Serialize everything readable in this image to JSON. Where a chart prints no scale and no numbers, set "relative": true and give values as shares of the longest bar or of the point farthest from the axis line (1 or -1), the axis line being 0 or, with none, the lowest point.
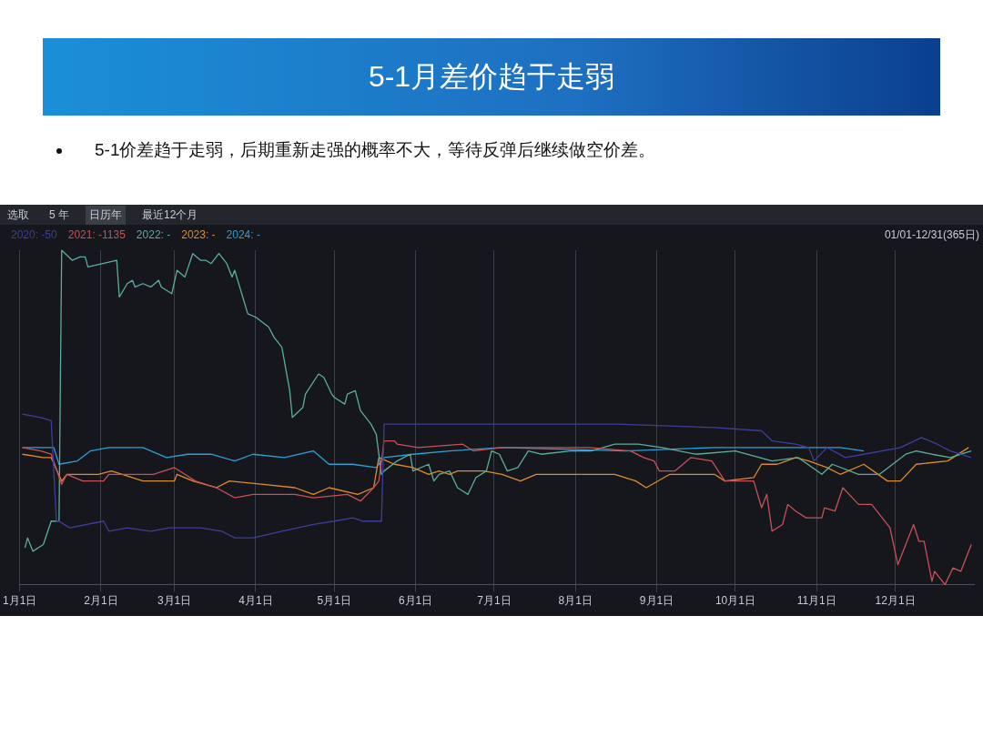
{
  "chart_data": {
    "type": "line",
    "title": "5-1月差价趋于走弱",
    "subtitle": "5-1价差趋于走弱，后期重新走强的概率不大，等待反弹后继续做空价差。",
    "annotations": [
      "选取",
      "5 年",
      "日历年",
      "最近12个月",
      "01/01-12/31(365日)"
    ],
    "relative": true,
    "legend": "top left",
    "grid": "x",
    "marker": "none",
    "line_style": "solid",
    "xlim": [
      "--01-01",
      "--12-31"
    ],
    "xticks": [
      {
        "value": "--01-01",
        "label": "1月1日"
      },
      {
        "value": "--02-01",
        "label": "2月1日"
      },
      {
        "value": "--03-01",
        "label": "3月1日"
      },
      {
        "value": "--04-01",
        "label": "4月1日"
      },
      {
        "value": "--05-01",
        "label": "5月1日"
      },
      {
        "value": "--06-01",
        "label": "6月1日"
      },
      {
        "value": "--07-01",
        "label": "7月1日"
      },
      {
        "value": "--08-01",
        "label": "8月1日"
      },
      {
        "value": "--09-01",
        "label": "9月1日"
      },
      {
        "value": "--10-01",
        "label": "10月1日"
      },
      {
        "value": "--11-01",
        "label": "11月1日"
      },
      {
        "value": "--12-01",
        "label": "12月1日"
      }
    ],
    "series": [
      {
        "name": "2020: -50",
        "color": "#3d3f9a",
        "x": [
          "--01-02",
          "--01-09",
          "--01-13",
          "--01-15",
          "--01-16",
          "--01-20",
          "--02-02",
          "--02-04",
          "--02-11",
          "--02-20",
          "--02-27",
          "--03-11",
          "--03-19",
          "--03-24",
          "--03-31",
          "--04-11",
          "--04-23",
          "--05-01",
          "--05-08",
          "--05-12",
          "--05-19",
          "--05-20",
          "--07-04",
          "--08-17",
          "--09-23",
          "--10-11",
          "--10-15",
          "--10-24",
          "--10-29",
          "--10-31",
          "--11-05",
          "--11-12",
          "--11-19",
          "--12-03",
          "--12-11",
          "--12-17",
          "--12-22",
          "--12-30"
        ],
        "values": [
          0.51,
          0.5,
          0.49,
          0.19,
          0.19,
          0.17,
          0.19,
          0.16,
          0.17,
          0.16,
          0.17,
          0.17,
          0.16,
          0.14,
          0.14,
          0.16,
          0.18,
          0.19,
          0.2,
          0.19,
          0.19,
          0.48,
          0.48,
          0.48,
          0.47,
          0.46,
          0.43,
          0.42,
          0.41,
          0.37,
          0.41,
          0.38,
          0.39,
          0.41,
          0.44,
          0.42,
          0.4,
          0.38
        ]
      },
      {
        "name": "2021: -1135",
        "color": "#c9505a",
        "x": [
          "--01-02",
          "--01-09",
          "--01-13",
          "--01-17",
          "--01-19",
          "--01-25",
          "--02-02",
          "--02-04",
          "--02-12",
          "--02-21",
          "--03-01",
          "--03-05",
          "--03-09",
          "--03-17",
          "--03-24",
          "--03-31",
          "--04-08",
          "--04-16",
          "--04-23",
          "--05-06",
          "--05-11",
          "--05-16",
          "--05-18",
          "--05-20",
          "--05-24",
          "--05-25",
          "--06-02",
          "--06-19",
          "--06-23",
          "--07-04",
          "--08-06",
          "--08-22",
          "--08-27",
          "--08-31",
          "--09-02",
          "--09-08",
          "--09-14",
          "--09-22",
          "--09-27",
          "--10-03",
          "--10-08",
          "--10-11",
          "--10-13",
          "--10-15",
          "--10-19",
          "--10-21",
          "--10-24",
          "--10-28",
          "--11-03",
          "--11-04",
          "--11-08",
          "--11-11",
          "--11-17",
          "--11-22",
          "--11-29",
          "--12-02",
          "--12-08",
          "--12-10",
          "--12-12",
          "--12-15",
          "--12-16",
          "--12-20",
          "--12-23",
          "--12-26",
          "--12-28",
          "--12-30"
        ],
        "values": [
          0.41,
          0.4,
          0.39,
          0.3,
          0.33,
          0.31,
          0.31,
          0.33,
          0.33,
          0.33,
          0.35,
          0.33,
          0.31,
          0.29,
          0.26,
          0.27,
          0.27,
          0.27,
          0.26,
          0.27,
          0.25,
          0.29,
          0.31,
          0.43,
          0.43,
          0.42,
          0.41,
          0.42,
          0.4,
          0.41,
          0.41,
          0.4,
          0.38,
          0.37,
          0.34,
          0.34,
          0.38,
          0.37,
          0.31,
          0.31,
          0.31,
          0.23,
          0.27,
          0.16,
          0.18,
          0.24,
          0.22,
          0.2,
          0.2,
          0.23,
          0.22,
          0.29,
          0.24,
          0.24,
          0.17,
          0.06,
          0.18,
          0.13,
          0.13,
          0.01,
          0.04,
          0.0,
          0.05,
          0.04,
          0.08,
          0.12
        ]
      },
      {
        "name": "2022: -",
        "color": "#5cae9a",
        "x": [
          "--01-03",
          "--01-04",
          "--01-06",
          "--01-10",
          "--01-13",
          "--01-16",
          "--01-17",
          "--01-21",
          "--01-24",
          "--01-26",
          "--01-27",
          "--02-07",
          "--02-08",
          "--02-11",
          "--02-13",
          "--02-14",
          "--02-17",
          "--02-20",
          "--02-23",
          "--02-24",
          "--02-28",
          "--03-02",
          "--03-05",
          "--03-08",
          "--03-11",
          "--03-13",
          "--03-15",
          "--03-18",
          "--03-21",
          "--03-23",
          "--03-24",
          "--03-29",
          "--04-01",
          "--04-06",
          "--04-08",
          "--04-11",
          "--04-14",
          "--04-15",
          "--04-19",
          "--04-20",
          "--04-25",
          "--04-27",
          "--04-30",
          "--05-01",
          "--05-05",
          "--05-06",
          "--05-09",
          "--05-11",
          "--05-15",
          "--05-17",
          "--05-19",
          "--05-20",
          "--05-25",
          "--05-30",
          "--05-31",
          "--06-06",
          "--06-08",
          "--06-10",
          "--06-14",
          "--06-17",
          "--06-21",
          "--06-24",
          "--06-28",
          "--06-30",
          "--07-03",
          "--07-06",
          "--07-10",
          "--07-14",
          "--07-19",
          "--07-30",
          "--08-07",
          "--08-16",
          "--08-25",
          "--09-03",
          "--09-16",
          "--10-01",
          "--10-15",
          "--10-25",
          "--11-03",
          "--11-07",
          "--11-17",
          "--11-25",
          "--12-05",
          "--12-09",
          "--12-15",
          "--12-22",
          "--12-30"
        ],
        "values": [
          0.11,
          0.14,
          0.1,
          0.12,
          0.19,
          0.19,
          1.0,
          0.97,
          0.98,
          0.98,
          0.95,
          0.97,
          0.86,
          0.9,
          0.91,
          0.89,
          0.9,
          0.89,
          0.91,
          0.89,
          0.87,
          0.94,
          0.92,
          0.99,
          0.97,
          0.97,
          0.96,
          0.99,
          0.96,
          0.92,
          0.94,
          0.81,
          0.8,
          0.77,
          0.74,
          0.71,
          0.58,
          0.5,
          0.53,
          0.57,
          0.63,
          0.62,
          0.57,
          0.56,
          0.54,
          0.57,
          0.58,
          0.52,
          0.48,
          0.45,
          0.33,
          0.34,
          0.37,
          0.39,
          0.34,
          0.36,
          0.31,
          0.33,
          0.34,
          0.29,
          0.27,
          0.32,
          0.34,
          0.4,
          0.39,
          0.34,
          0.35,
          0.4,
          0.39,
          0.4,
          0.4,
          0.42,
          0.42,
          0.41,
          0.39,
          0.4,
          0.37,
          0.38,
          0.33,
          0.36,
          0.33,
          0.33,
          0.39,
          0.4,
          0.39,
          0.38,
          0.4
        ]
      },
      {
        "name": "2023: -",
        "color": "#e08a2e",
        "x": [
          "--01-02",
          "--01-10",
          "--01-13",
          "--01-17",
          "--01-19",
          "--01-31",
          "--02-05",
          "--02-17",
          "--03-01",
          "--03-02",
          "--03-08",
          "--03-17",
          "--03-22",
          "--04-04",
          "--04-16",
          "--04-23",
          "--04-29",
          "--05-10",
          "--05-16",
          "--05-18",
          "--05-24",
          "--05-31",
          "--06-06",
          "--06-10",
          "--06-14",
          "--06-17",
          "--06-27",
          "--07-04",
          "--07-11",
          "--07-17",
          "--08-02",
          "--08-16",
          "--08-24",
          "--08-28",
          "--09-06",
          "--09-23",
          "--09-27",
          "--10-08",
          "--10-11",
          "--10-17",
          "--10-24",
          "--10-29",
          "--11-05",
          "--11-10",
          "--11-19",
          "--11-28",
          "--12-03",
          "--12-09",
          "--12-21",
          "--12-29"
        ],
        "values": [
          0.39,
          0.38,
          0.38,
          0.31,
          0.33,
          0.33,
          0.34,
          0.31,
          0.31,
          0.33,
          0.31,
          0.29,
          0.31,
          0.3,
          0.29,
          0.27,
          0.29,
          0.27,
          0.29,
          0.38,
          0.36,
          0.35,
          0.33,
          0.34,
          0.33,
          0.34,
          0.34,
          0.33,
          0.31,
          0.33,
          0.33,
          0.33,
          0.31,
          0.29,
          0.33,
          0.33,
          0.31,
          0.32,
          0.36,
          0.36,
          0.38,
          0.37,
          0.35,
          0.33,
          0.36,
          0.31,
          0.31,
          0.36,
          0.37,
          0.41
        ]
      },
      {
        "name": "2024: -",
        "color": "#2e9fd6",
        "x": [
          "--01-02",
          "--01-14",
          "--01-16",
          "--01-23",
          "--01-28",
          "--02-04",
          "--02-17",
          "--02-26",
          "--03-06",
          "--03-15",
          "--03-24",
          "--03-31",
          "--04-12",
          "--04-23",
          "--04-29",
          "--05-08",
          "--05-17",
          "--05-20",
          "--05-31",
          "--06-14",
          "--07-04",
          "--08-20",
          "--09-23",
          "--10-17",
          "--11-10",
          "--11-19"
        ],
        "values": [
          0.41,
          0.41,
          0.36,
          0.37,
          0.4,
          0.41,
          0.41,
          0.38,
          0.39,
          0.39,
          0.37,
          0.39,
          0.38,
          0.4,
          0.36,
          0.36,
          0.35,
          0.38,
          0.39,
          0.4,
          0.41,
          0.4,
          0.41,
          0.41,
          0.41,
          0.4
        ]
      }
    ]
  }
}
